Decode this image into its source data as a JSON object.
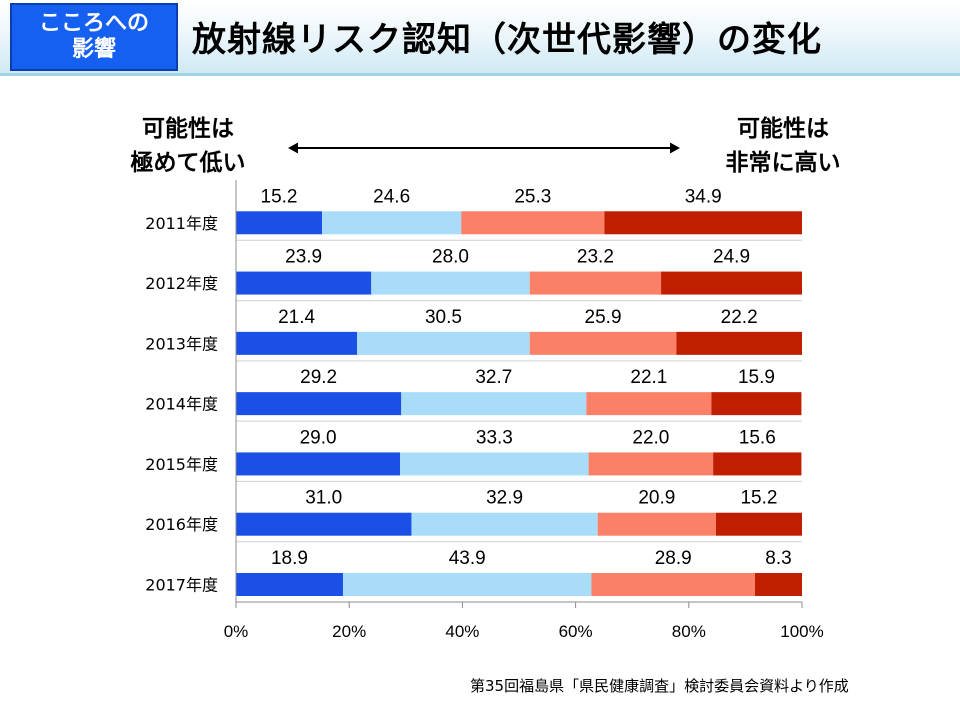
{
  "header": {
    "badge_line1": "こころへの",
    "badge_line2": "影響",
    "title": "放射線リスク認知（次世代影響）の変化"
  },
  "scale": {
    "left_line1": "可能性は",
    "left_line2": "極めて低い",
    "right_line1": "可能性は",
    "right_line2": "非常に高い"
  },
  "source_note": "第35回福島県「県民健康調査」検討委員会資料より作成",
  "colors": {
    "series": [
      "#1a50e6",
      "#a8dcf8",
      "#fa8068",
      "#c01e00"
    ]
  },
  "chart_data": {
    "type": "bar",
    "orientation": "horizontal",
    "stacked": true,
    "percent_stacked": true,
    "categories": [
      "2011年度",
      "2012年度",
      "2013年度",
      "2014年度",
      "2015年度",
      "2016年度",
      "2017年度"
    ],
    "series": [
      {
        "values": [
          15.2,
          23.9,
          21.4,
          29.2,
          29.0,
          31.0,
          18.9
        ]
      },
      {
        "values": [
          24.6,
          28.0,
          30.5,
          32.7,
          33.3,
          32.9,
          43.9
        ]
      },
      {
        "values": [
          25.3,
          23.2,
          25.9,
          22.1,
          22.0,
          20.9,
          28.9
        ]
      },
      {
        "values": [
          34.9,
          24.9,
          22.2,
          15.9,
          15.6,
          15.2,
          8.3
        ]
      }
    ],
    "data_labels": [
      [
        "15.2",
        "24.6",
        "25.3",
        "34.9"
      ],
      [
        "23.9",
        "28.0",
        "23.2",
        "24.9"
      ],
      [
        "21.4",
        "30.5",
        "25.9",
        "22.2"
      ],
      [
        "29.2",
        "32.7",
        "22.1",
        "15.9"
      ],
      [
        "29.0",
        "33.3",
        "22.0",
        "15.6"
      ],
      [
        "31.0",
        "32.9",
        "20.9",
        "15.2"
      ],
      [
        "18.9",
        "43.9",
        "28.9",
        "8.3"
      ]
    ],
    "xlim": [
      0,
      100
    ],
    "x_ticks": [
      "0%",
      "20%",
      "40%",
      "60%",
      "80%",
      "100%"
    ],
    "grid": "horizontal separators between categories"
  }
}
